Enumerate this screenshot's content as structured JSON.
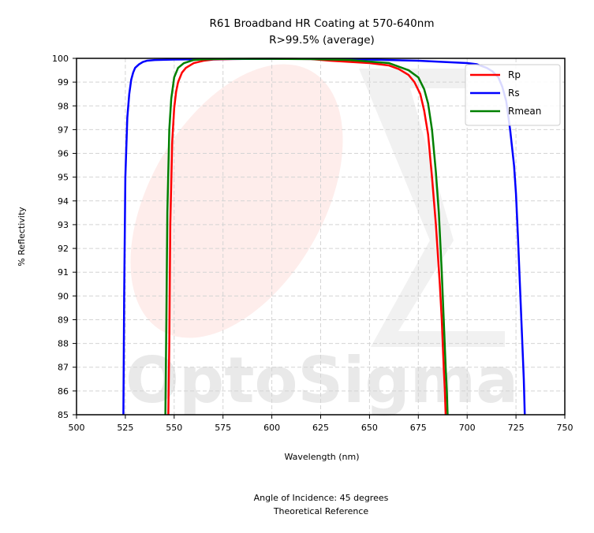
{
  "chart_data": {
    "type": "line",
    "title": "R61 Broadband HR Coating at 570-640nm",
    "subtitle": "R>99.5% (average)",
    "xlabel": "Wavelength (nm)",
    "ylabel": "% Reflectivity",
    "xlim": [
      500,
      750
    ],
    "ylim": [
      85,
      100
    ],
    "x_ticks": [
      500,
      525,
      550,
      575,
      600,
      625,
      650,
      675,
      700,
      725,
      750
    ],
    "y_ticks": [
      85,
      86,
      87,
      88,
      89,
      90,
      91,
      92,
      93,
      94,
      95,
      96,
      97,
      98,
      99,
      100
    ],
    "grid": true,
    "legend_position": "top-right",
    "footnote_line1": "Angle of Incidence: 45 degrees",
    "footnote_line2": "Theoretical Reference",
    "watermark_text": "OptoSigma",
    "series": [
      {
        "name": "Rp",
        "color": "#ff0000",
        "x": [
          547.0,
          547.5,
          548,
          549,
          550,
          551,
          552,
          554,
          556,
          560,
          565,
          570,
          580,
          590,
          600,
          610,
          620,
          630,
          640,
          650,
          660,
          665,
          670,
          673,
          676,
          678,
          680,
          682,
          684,
          686,
          687,
          688,
          688.6,
          689.0
        ],
        "y": [
          85.0,
          88.0,
          93.0,
          96.5,
          97.9,
          98.6,
          99.0,
          99.4,
          99.6,
          99.8,
          99.9,
          99.95,
          99.97,
          99.98,
          99.98,
          99.98,
          99.97,
          99.9,
          99.85,
          99.8,
          99.7,
          99.55,
          99.3,
          99.0,
          98.5,
          97.8,
          96.8,
          95.0,
          93.0,
          90.5,
          89.0,
          87.0,
          86.0,
          85.0
        ]
      },
      {
        "name": "Rs",
        "color": "#0000ff",
        "x": [
          524.0,
          524.4,
          525,
          526,
          527,
          528,
          529,
          530,
          532,
          534,
          536,
          540,
          550,
          575,
          600,
          625,
          650,
          675,
          700,
          705,
          710,
          713,
          716,
          718,
          720,
          722,
          724,
          725,
          726,
          727,
          728,
          729,
          729.5
        ],
        "y": [
          85.0,
          90.0,
          95.0,
          97.5,
          98.5,
          99.1,
          99.4,
          99.6,
          99.75,
          99.85,
          99.9,
          99.93,
          99.95,
          99.97,
          99.98,
          99.97,
          99.95,
          99.9,
          99.8,
          99.75,
          99.6,
          99.45,
          99.2,
          98.8,
          98.2,
          97.0,
          95.5,
          94.3,
          92.5,
          90.5,
          88.5,
          86.5,
          85.0
        ]
      },
      {
        "name": "Rmean",
        "color": "#008000",
        "x": [
          545.5,
          546.0,
          546.5,
          547.5,
          548.5,
          550,
          552,
          555,
          560,
          565,
          570,
          580,
          600,
          620,
          640,
          660,
          670,
          675,
          678,
          680,
          682,
          684,
          685.5,
          687,
          688,
          689,
          689.6,
          690.0
        ],
        "y": [
          85.0,
          89.0,
          93.5,
          97.0,
          98.3,
          99.2,
          99.6,
          99.8,
          99.93,
          99.96,
          99.97,
          99.98,
          99.98,
          99.97,
          99.93,
          99.8,
          99.5,
          99.2,
          98.7,
          98.1,
          97.0,
          95.2,
          93.5,
          91.0,
          89.0,
          87.0,
          86.0,
          85.0
        ]
      }
    ]
  }
}
